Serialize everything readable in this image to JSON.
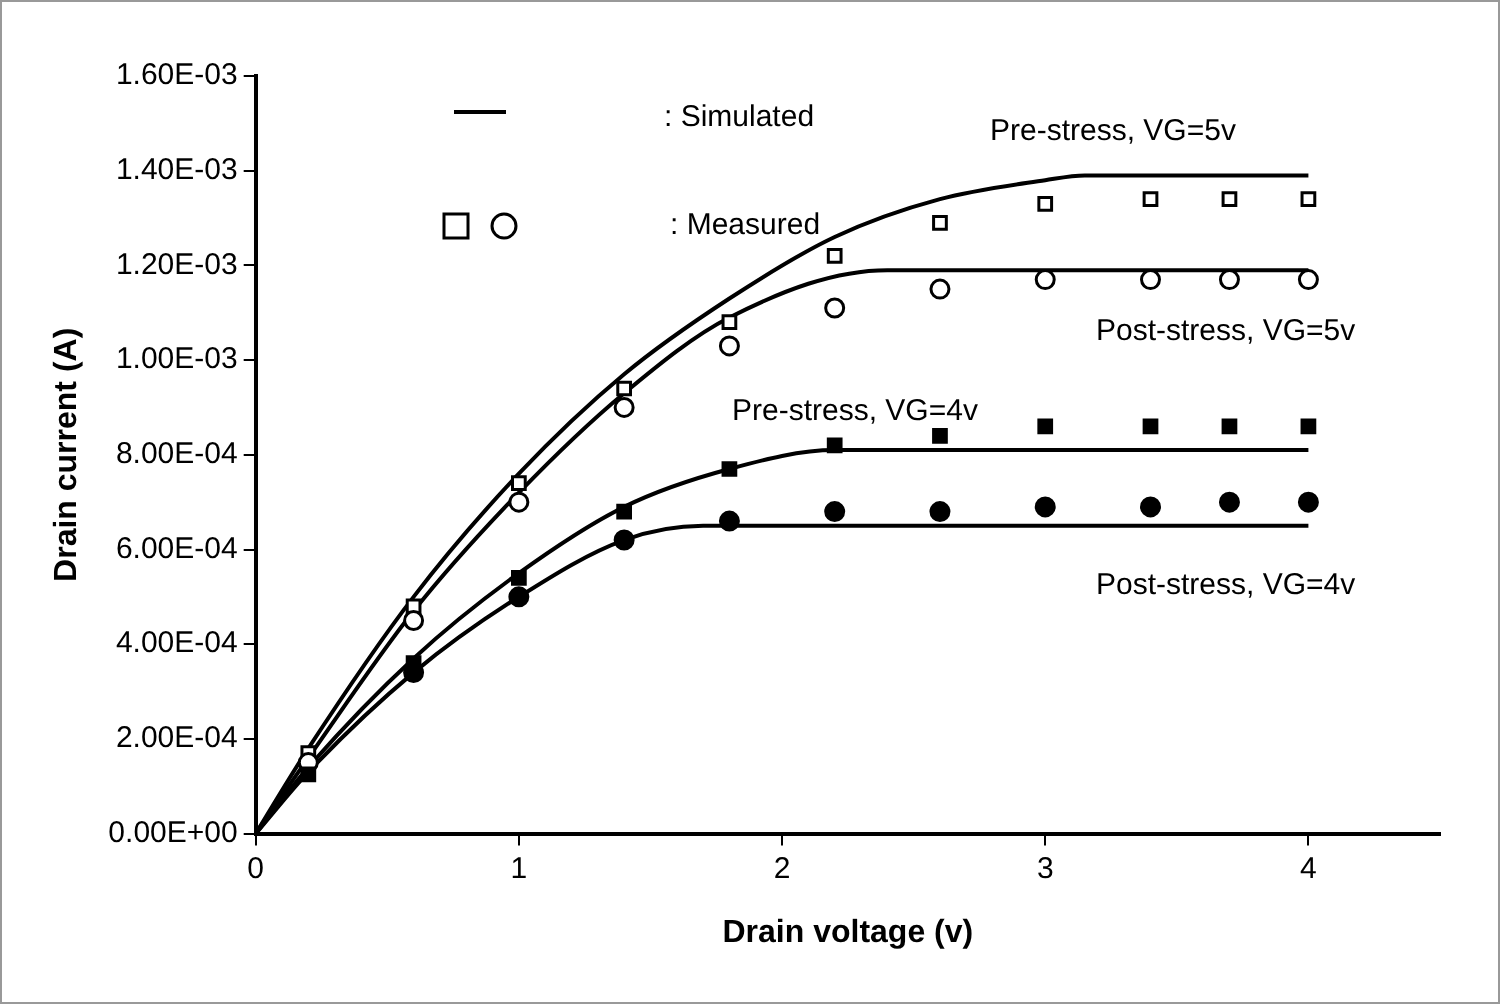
{
  "chart_data": {
    "type": "scatter",
    "xlabel": "Drain voltage (v)",
    "ylabel": "Drain current (A)",
    "xlim": [
      0,
      4.5
    ],
    "xticks": [
      0,
      1,
      2,
      3,
      4
    ],
    "ylim": [
      0,
      0.0016
    ],
    "yticks": [
      {
        "value": 0,
        "label": "0.00E+00"
      },
      {
        "value": 0.0002,
        "label": "2.00E-04"
      },
      {
        "value": 0.0004,
        "label": "4.00E-04"
      },
      {
        "value": 0.0006,
        "label": "6.00E-04"
      },
      {
        "value": 0.0008,
        "label": "8.00E-04"
      },
      {
        "value": 0.001,
        "label": "1.00E-03"
      },
      {
        "value": 0.0012,
        "label": "1.20E-03"
      },
      {
        "value": 0.0014,
        "label": "1.40E-03"
      },
      {
        "value": 0.0016,
        "label": "1.60E-03"
      }
    ],
    "grid": false,
    "legend": false,
    "series": [
      {
        "type": "line",
        "marker": "none",
        "color": "#000000",
        "x": [
          0,
          0.2,
          0.6,
          1.0,
          1.4,
          1.8,
          2.2,
          2.6,
          3.0,
          3.15,
          4.0
        ],
        "values": [
          0,
          0.00018,
          0.0005,
          0.00076,
          0.00097,
          0.00113,
          0.00126,
          0.00134,
          0.00138,
          0.00139,
          0.00139
        ]
      },
      {
        "type": "line",
        "marker": "none",
        "color": "#000000",
        "x": [
          0,
          0.2,
          0.6,
          1.0,
          1.4,
          1.8,
          2.4,
          4.0
        ],
        "values": [
          0,
          0.00016,
          0.00047,
          0.00072,
          0.00093,
          0.00109,
          0.00119,
          0.00119
        ]
      },
      {
        "type": "line",
        "marker": "none",
        "color": "#000000",
        "x": [
          0,
          0.2,
          0.6,
          1.0,
          1.4,
          1.8,
          2.2,
          4.0
        ],
        "values": [
          0,
          0.00014,
          0.00037,
          0.00055,
          0.00069,
          0.00077,
          0.00081,
          0.00081
        ]
      },
      {
        "type": "line",
        "marker": "none",
        "color": "#000000",
        "x": [
          0,
          0.2,
          0.6,
          1.0,
          1.4,
          1.7,
          4.0
        ],
        "values": [
          0,
          0.00013,
          0.00034,
          0.0005,
          0.00062,
          0.00065,
          0.00065
        ]
      },
      {
        "marker": "square",
        "color": "#ffffff",
        "x": [
          0.2,
          0.6,
          1.0,
          1.4,
          1.8,
          2.2,
          2.6,
          3.0,
          3.4,
          3.7,
          4.0
        ],
        "values": [
          0.00017,
          0.00048,
          0.00074,
          0.00094,
          0.00108,
          0.00122,
          0.00129,
          0.00133,
          0.00134,
          0.00134,
          0.00134
        ]
      },
      {
        "marker": "circle",
        "color": "#ffffff",
        "x": [
          0.2,
          0.6,
          1.0,
          1.4,
          1.8,
          2.2,
          2.6,
          3.0,
          3.4,
          3.7,
          4.0
        ],
        "values": [
          0.00015,
          0.00045,
          0.0007,
          0.0009,
          0.00103,
          0.00111,
          0.00115,
          0.00117,
          0.00117,
          0.00117,
          0.00117
        ]
      },
      {
        "marker": "circle",
        "color": "#000000",
        "x": [
          0.6,
          1.0,
          1.4,
          1.8,
          2.2,
          2.6,
          3.0,
          3.4,
          3.7,
          4.0
        ],
        "values": [
          0.00034,
          0.0005,
          0.00062,
          0.00066,
          0.00068,
          0.00068,
          0.00069,
          0.00069,
          0.0007,
          0.0007
        ]
      },
      {
        "marker": "square",
        "color": "#000000",
        "x": [
          0.2,
          0.6,
          1.0,
          1.4,
          1.8,
          2.2,
          2.6,
          3.0,
          3.4,
          3.7,
          4.0
        ],
        "values": [
          0.000125,
          0.00036,
          0.00054,
          0.00068,
          0.00077,
          0.00082,
          0.00084,
          0.00086,
          0.00086,
          0.00086,
          0.00086
        ]
      }
    ],
    "annotations": [
      "Pre-stress, VG=5v",
      "Post-stress, VG=5v",
      "Pre-stress, VG=4v",
      "Post-stress, VG=4v",
      ": Simulated",
      ": Measured"
    ]
  }
}
